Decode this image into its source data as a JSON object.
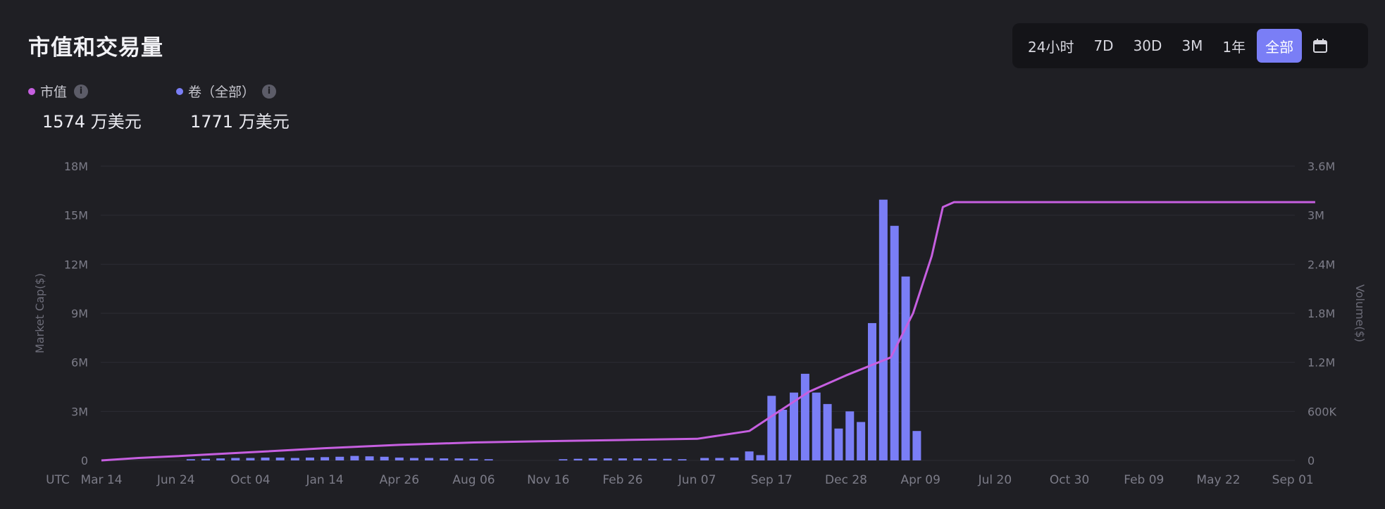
{
  "header": {
    "title": "市值和交易量"
  },
  "range_buttons": [
    "24小时",
    "7D",
    "30D",
    "3M",
    "1年",
    "全部"
  ],
  "active_range": "全部",
  "legend": [
    {
      "name": "市值",
      "value": "1574 万美元",
      "color": "#c65fe0"
    },
    {
      "name": "卷（全部）",
      "value": "1771 万美元",
      "color": "#7a7ef6"
    }
  ],
  "colors": {
    "background": "#1f1f24",
    "line": "#c65fe0",
    "bar": "#7a7ef6",
    "accent": "#7a7ef6"
  },
  "chart_data": {
    "type": "bar+line",
    "x_prefix_label": "UTC",
    "x_ticks": [
      "Mar 14",
      "Jun 24",
      "Oct 04",
      "Jan 14",
      "Apr 26",
      "Aug 06",
      "Nov 16",
      "Feb 26",
      "Jun 07",
      "Sep 17",
      "Dec 28",
      "Apr 09",
      "Jul 20",
      "Oct 30",
      "Feb 09",
      "May 22",
      "Sep 01"
    ],
    "y_left": {
      "label": "Market Cap($)",
      "ticks": [
        "0",
        "3M",
        "6M",
        "9M",
        "12M",
        "15M",
        "18M"
      ],
      "max": 18000000
    },
    "y_right": {
      "label": "Volume($)",
      "ticks": [
        "0",
        "600K",
        "1.2M",
        "1.8M",
        "2.4M",
        "3M",
        "3.6M"
      ],
      "max": 3600000
    },
    "series": [
      {
        "name": "市值",
        "kind": "line",
        "points": [
          [
            0,
            0
          ],
          [
            0.5,
            150000
          ],
          [
            1,
            260000
          ],
          [
            2,
            500000
          ],
          [
            3,
            750000
          ],
          [
            4,
            950000
          ],
          [
            5,
            1100000
          ],
          [
            6,
            1180000
          ],
          [
            7,
            1250000
          ],
          [
            8,
            1320000
          ],
          [
            8.7,
            1800000
          ],
          [
            9,
            2700000
          ],
          [
            9.5,
            4200000
          ],
          [
            10,
            5200000
          ],
          [
            10.6,
            6300000
          ],
          [
            10.9,
            9000000
          ],
          [
            11.15,
            12500000
          ],
          [
            11.3,
            15500000
          ],
          [
            11.45,
            15800000
          ],
          [
            12,
            15800000
          ],
          [
            14,
            15800000
          ],
          [
            16,
            15800000
          ],
          [
            16.3,
            15800000
          ]
        ]
      },
      {
        "name": "卷（全部）",
        "kind": "bar",
        "points": [
          [
            1.2,
            15000
          ],
          [
            1.4,
            20000
          ],
          [
            1.6,
            25000
          ],
          [
            1.8,
            30000
          ],
          [
            2,
            30000
          ],
          [
            2.2,
            35000
          ],
          [
            2.4,
            35000
          ],
          [
            2.6,
            30000
          ],
          [
            2.8,
            35000
          ],
          [
            3,
            40000
          ],
          [
            3.2,
            45000
          ],
          [
            3.4,
            55000
          ],
          [
            3.6,
            50000
          ],
          [
            3.8,
            45000
          ],
          [
            4,
            35000
          ],
          [
            4.2,
            30000
          ],
          [
            4.4,
            30000
          ],
          [
            4.6,
            25000
          ],
          [
            4.8,
            25000
          ],
          [
            5,
            20000
          ],
          [
            5.2,
            15000
          ],
          [
            6.2,
            15000
          ],
          [
            6.4,
            20000
          ],
          [
            6.6,
            25000
          ],
          [
            6.8,
            25000
          ],
          [
            7,
            25000
          ],
          [
            7.2,
            25000
          ],
          [
            7.4,
            20000
          ],
          [
            7.6,
            20000
          ],
          [
            7.8,
            15000
          ],
          [
            8.1,
            30000
          ],
          [
            8.3,
            30000
          ],
          [
            8.5,
            35000
          ],
          [
            8.7,
            110000
          ],
          [
            8.85,
            65000
          ],
          [
            9,
            790000
          ],
          [
            9.15,
            620000
          ],
          [
            9.3,
            830000
          ],
          [
            9.45,
            1060000
          ],
          [
            9.6,
            830000
          ],
          [
            9.75,
            690000
          ],
          [
            9.9,
            390000
          ],
          [
            10.05,
            600000
          ],
          [
            10.2,
            470000
          ],
          [
            10.35,
            1680000
          ],
          [
            10.5,
            3190000
          ],
          [
            10.65,
            2870000
          ],
          [
            10.8,
            2250000
          ],
          [
            10.95,
            360000
          ]
        ]
      }
    ]
  }
}
